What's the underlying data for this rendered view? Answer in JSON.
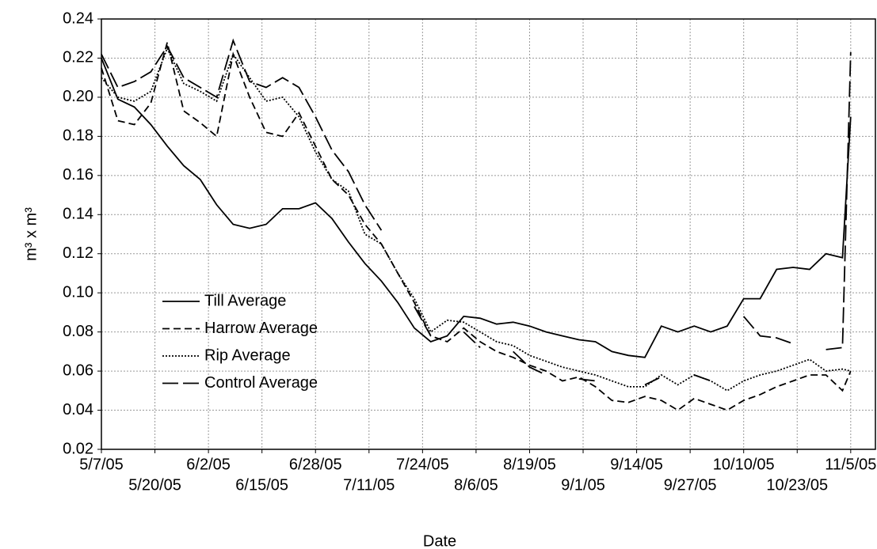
{
  "chart_data": {
    "type": "line",
    "x_label": "Date",
    "y_label": "m³ x m³",
    "x": [
      "5/7/05",
      "5/11/05",
      "5/15/05",
      "5/19/05",
      "5/23/05",
      "5/27/05",
      "5/31/05",
      "6/4/05",
      "6/8/05",
      "6/12/05",
      "6/16/05",
      "6/20/05",
      "6/24/05",
      "6/28/05",
      "7/2/05",
      "7/6/05",
      "7/10/05",
      "7/14/05",
      "7/18/05",
      "7/22/05",
      "7/26/05",
      "7/30/05",
      "8/3/05",
      "8/7/05",
      "8/11/05",
      "8/15/05",
      "8/19/05",
      "8/23/05",
      "8/27/05",
      "8/31/05",
      "9/4/05",
      "9/8/05",
      "9/12/05",
      "9/16/05",
      "9/20/05",
      "9/24/05",
      "9/28/05",
      "10/2/05",
      "10/6/05",
      "10/10/05",
      "10/14/05",
      "10/18/05",
      "10/22/05",
      "10/26/05",
      "10/30/05",
      "11/3/05",
      "11/5/05"
    ],
    "series": [
      {
        "name": "Till Average",
        "color": "#000000",
        "dash": "none",
        "values": [
          0.22,
          0.199,
          0.195,
          0.186,
          0.175,
          0.165,
          0.158,
          0.145,
          0.135,
          0.133,
          0.135,
          0.143,
          0.143,
          0.146,
          0.138,
          0.126,
          0.115,
          0.106,
          0.095,
          0.082,
          0.075,
          0.078,
          0.088,
          0.087,
          0.084,
          0.085,
          0.083,
          0.08,
          0.078,
          0.076,
          0.075,
          0.07,
          0.068,
          0.067,
          0.083,
          0.08,
          0.083,
          0.08,
          0.083,
          0.097,
          0.097,
          0.112,
          0.113,
          0.112,
          0.12,
          0.118,
          0.19
        ]
      },
      {
        "name": "Harrow  Average",
        "color": "#000000",
        "dash": "9,5",
        "values": [
          0.215,
          0.188,
          0.186,
          0.197,
          0.228,
          0.193,
          0.187,
          0.18,
          0.222,
          0.2,
          0.182,
          0.18,
          0.192,
          0.175,
          0.158,
          0.15,
          0.135,
          0.125,
          0.11,
          0.095,
          0.078,
          0.075,
          0.082,
          0.075,
          0.07,
          0.067,
          0.063,
          0.06,
          0.055,
          0.057,
          0.052,
          0.045,
          0.044,
          0.047,
          0.045,
          0.04,
          0.046,
          0.043,
          0.04,
          0.045,
          0.048,
          0.052,
          0.055,
          0.058,
          0.058,
          0.05,
          0.06
        ]
      },
      {
        "name": "Rip Average",
        "color": "#000000",
        "dash": "2,2",
        "values": [
          0.21,
          0.2,
          0.198,
          0.203,
          0.225,
          0.207,
          0.203,
          0.198,
          0.222,
          0.21,
          0.198,
          0.2,
          0.19,
          0.172,
          0.158,
          0.152,
          0.13,
          0.125,
          0.11,
          0.097,
          0.08,
          0.086,
          0.085,
          0.08,
          0.075,
          0.073,
          0.068,
          0.065,
          0.062,
          0.06,
          0.058,
          0.055,
          0.052,
          0.052,
          0.058,
          0.053,
          0.058,
          0.055,
          0.05,
          0.055,
          0.058,
          0.06,
          0.063,
          0.066,
          0.06,
          0.061,
          0.06
        ]
      },
      {
        "name": "Control Average",
        "color": "#000000",
        "dash": "20,6",
        "values": [
          0.222,
          0.205,
          0.208,
          0.213,
          0.226,
          0.21,
          0.205,
          0.2,
          0.229,
          0.208,
          0.205,
          0.21,
          0.205,
          0.19,
          0.173,
          0.162,
          0.145,
          0.132,
          null,
          0.093,
          0.078,
          null,
          0.08,
          0.072,
          null,
          0.07,
          0.062,
          0.058,
          null,
          0.056,
          0.055,
          null,
          null,
          0.053,
          0.057,
          null,
          0.058,
          0.055,
          null,
          0.088,
          0.078,
          0.077,
          0.074,
          null,
          0.071,
          0.072,
          0.223
        ]
      }
    ],
    "xlim": [
      "5/7/05",
      "11/11/05"
    ],
    "xticks": [
      "5/7/05",
      "5/20/05",
      "6/2/05",
      "6/15/05",
      "6/28/05",
      "7/11/05",
      "7/24/05",
      "8/6/05",
      "8/19/05",
      "9/1/05",
      "9/14/05",
      "9/27/05",
      "10/10/05",
      "10/23/05",
      "11/5/05"
    ],
    "ylim": [
      0.02,
      0.24
    ],
    "yticks": [
      0.02,
      0.04,
      0.06,
      0.08,
      {
        "value": 0.1,
        "label": "0.10"
      },
      0.12,
      0.14,
      0.16,
      0.18,
      {
        "value": 0.2,
        "label": "0.20"
      },
      0.22,
      0.24
    ],
    "grid": true
  }
}
